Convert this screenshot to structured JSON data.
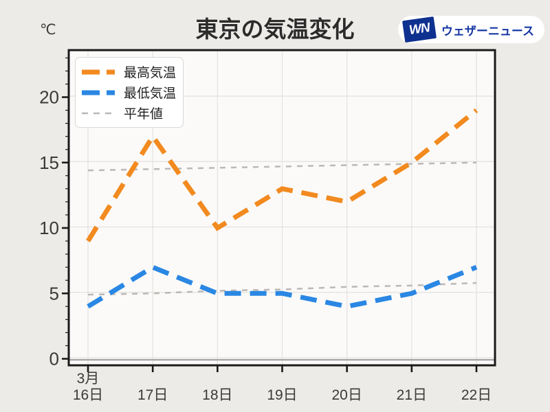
{
  "page": {
    "background": "#EDEBE7",
    "plot_background": "#FBFAF9"
  },
  "header": {
    "logo": {
      "mark": "WN",
      "text": "ウェザーニュース",
      "pill_bg": "#FFFFFF",
      "mark_bg": "#0E3190",
      "text_color": "#1638A3"
    }
  },
  "chart_data": {
    "type": "line",
    "title": "東京の気温変化",
    "ylabel": "℃",
    "xlabel": "",
    "x_month_label": "3月",
    "categories": [
      "16日",
      "17日",
      "18日",
      "19日",
      "20日",
      "21日",
      "22日"
    ],
    "series": [
      {
        "key": "normal-high",
        "name": "平年値(最高)",
        "values": [
          14.4,
          14.5,
          14.6,
          14.7,
          14.8,
          14.9,
          15.0
        ],
        "color": "#BBB8B5",
        "style": "dashed-thin"
      },
      {
        "key": "normal-low",
        "name": "平年値(最低)",
        "values": [
          4.9,
          5.0,
          5.2,
          5.3,
          5.5,
          5.6,
          5.8
        ],
        "color": "#BBB8B5",
        "style": "dashed-thin"
      },
      {
        "key": "max",
        "name": "最高気温",
        "values": [
          9,
          17,
          10,
          13,
          12,
          15,
          19
        ],
        "color": "#F28A1F",
        "style": "dashed-thick"
      },
      {
        "key": "min",
        "name": "最低気温",
        "values": [
          4,
          7,
          5,
          5,
          4,
          5,
          7
        ],
        "color": "#2A87E3",
        "style": "dashed-thick"
      }
    ],
    "legend": {
      "position": "upper-left",
      "entries": [
        {
          "label": "最高気温",
          "color": "#F28A1F",
          "weight": "thick"
        },
        {
          "label": "最低気温",
          "color": "#2A87E3",
          "weight": "thick"
        },
        {
          "label": "平年値",
          "color": "#BBB8B5",
          "weight": "thin"
        }
      ]
    },
    "y_ticks": [
      0,
      5,
      10,
      15,
      20
    ],
    "ylim": [
      -0.5,
      23.6
    ],
    "grid": true,
    "zero_line_color": "#A3A3A3"
  }
}
